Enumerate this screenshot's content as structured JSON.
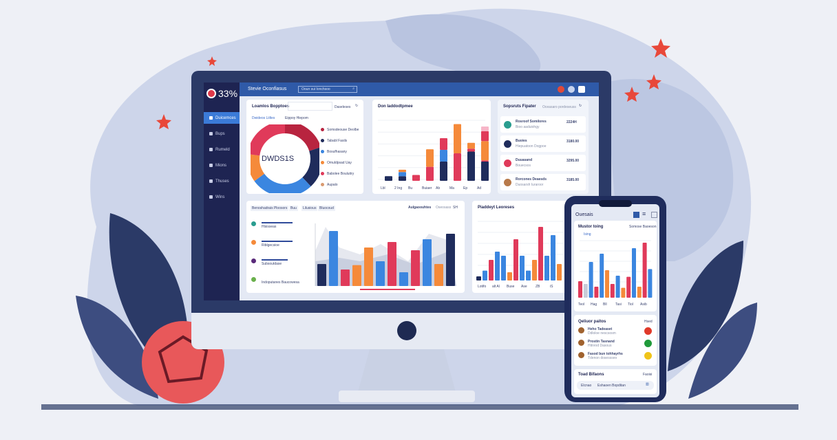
{
  "colors": {
    "navy": "#1f2c5c",
    "blue": "#3b86e0",
    "red": "#e03a5a",
    "orange": "#f58a3a",
    "teal": "#2a9d8f",
    "gray": "#c8ccd8",
    "pink": "#f7b6c8"
  },
  "app": {
    "logo": "33%",
    "title": "Stevie Oconfiasus",
    "search_placeholder": "Ooun sui Ionchsoo"
  },
  "sidebar": {
    "items": [
      {
        "label": "Duicemces",
        "active": true
      },
      {
        "label": "Bups"
      },
      {
        "label": "Rumeld"
      },
      {
        "label": "Mions"
      },
      {
        "label": "Thuses"
      },
      {
        "label": "Wins"
      }
    ]
  },
  "donut_card": {
    "title": "Loamlos Bopptoes",
    "tab": "Daseleses",
    "legend_a": "Dwideos Liiltes",
    "legend_b": "Eippoy Hiepom",
    "center": "DWDS1S",
    "slices": [
      {
        "label": "Somsdeouse Deolbe",
        "value": 20,
        "color": "#b8243f"
      },
      {
        "label": "Tababl Fasils",
        "value": 18,
        "color": "#1f2c5c"
      },
      {
        "label": "Bosufhasany",
        "value": 27,
        "color": "#3b86e0"
      },
      {
        "label": "Omuldpsad Uay",
        "value": 12,
        "color": "#f58a3a"
      },
      {
        "label": "Babolee Bouluitry",
        "value": 23,
        "color": "#e03a5a"
      },
      {
        "label": "Aupalo",
        "value": 0,
        "color": "#d99a70"
      }
    ]
  },
  "bar_card": {
    "title": "Don Iaddodtpmee",
    "labels": [
      "Lbl",
      "2 Ing",
      "Bu",
      "Buiaer",
      "Ab",
      "Ma",
      "Ep",
      "Ad"
    ],
    "bars": [
      [
        [
          "navy",
          8
        ]
      ],
      [
        [
          "navy",
          8
        ],
        [
          "blue",
          7
        ],
        [
          "orange",
          4
        ]
      ],
      [
        [
          "red",
          10
        ]
      ],
      [
        [
          "red",
          24
        ],
        [
          "orange",
          30
        ]
      ],
      [
        [
          "navy",
          33
        ],
        [
          "blue",
          20
        ],
        [
          "red",
          20
        ]
      ],
      [
        [
          "red",
          47
        ],
        [
          "orange",
          50
        ]
      ],
      [
        [
          "navy",
          50
        ],
        [
          "red",
          5
        ],
        [
          "orange",
          10
        ]
      ],
      [
        [
          "navy",
          33
        ],
        [
          "red",
          2
        ],
        [
          "orange",
          33
        ],
        [
          "red",
          17
        ],
        [
          "pink",
          8
        ]
      ]
    ]
  },
  "list_card": {
    "title": "Sopsruts Fipater",
    "tab": "Oceasaro pordeseuss",
    "items": [
      {
        "name": "Rosroof Somilores",
        "sub": "Bioo aaduiohgy",
        "value": "2224H",
        "color": "#2a9d8f"
      },
      {
        "name": "Buoies",
        "sub": "Hiepuatoon Dogpoe",
        "value": "3180.00",
        "color": "#1f2c5c"
      },
      {
        "name": "Duuasand",
        "sub": "Bouecsos",
        "value": "3295.00",
        "color": "#e03a5a"
      },
      {
        "name": "Rorcones Deaesds",
        "sub": "Duosarsh Iuraroor",
        "value": "3185.00",
        "color": "#b87a4a"
      }
    ]
  },
  "wide_card": {
    "tabs": [
      "Benoshadrais Ploosors",
      "Buu",
      "Lilusious",
      "Bluocoud"
    ],
    "right_label": "Aulgaoouhtes",
    "right_tab": "Oseosass",
    "right_value": "SH",
    "rows": [
      {
        "label": "Hlsisseas",
        "progress": 1.0,
        "color": "#2a9d8f"
      },
      {
        "label": "Riblgecsioe",
        "progress": 1.0,
        "color": "#f58a3a"
      },
      {
        "label": "Subsoutdase",
        "progress": 0.85,
        "color": "#5a2a7a"
      },
      {
        "label": "Indoputanes Baucowesa",
        "progress": 0,
        "color": "#6ab04c"
      }
    ],
    "bars": [
      [
        "navy",
        40
      ],
      [
        "blue",
        100
      ],
      [
        "red",
        30
      ],
      [
        "orange",
        38
      ],
      [
        "orange",
        70
      ],
      [
        "blue",
        45
      ],
      [
        "red",
        80
      ],
      [
        "blue",
        25
      ],
      [
        "red",
        65
      ],
      [
        "blue",
        85
      ],
      [
        "orange",
        40
      ],
      [
        "navy",
        95
      ]
    ]
  },
  "grouped_card": {
    "title": "Piaddeyt Leoreses",
    "labels": [
      "Lotifo",
      "alt Al",
      "Buse",
      "Ase",
      "ZB",
      "iS"
    ],
    "bars": [
      [
        "navy",
        5
      ],
      [
        "blue",
        12
      ],
      [
        "red",
        25
      ],
      [
        "blue",
        35
      ],
      [
        "blue",
        30
      ],
      [
        "orange",
        10
      ],
      [
        "red",
        50
      ],
      [
        "blue",
        30
      ],
      [
        "blue",
        12
      ],
      [
        "orange",
        25
      ],
      [
        "red",
        65
      ],
      [
        "blue",
        30
      ],
      [
        "blue",
        55
      ],
      [
        "orange",
        20
      ]
    ]
  },
  "phone": {
    "brand": "Ouesais",
    "chart_title": "Mustor toing",
    "dropdown": "Somose Baoeson",
    "legend": "Ising",
    "labels": [
      "Teol",
      "Hag",
      "Bll",
      "Tasi",
      "Tiol",
      "Asib"
    ],
    "bars": [
      [
        "red",
        30
      ],
      [
        "gray",
        25
      ],
      [
        "blue",
        65
      ],
      [
        "red",
        20
      ],
      [
        "blue",
        80
      ],
      [
        "orange",
        50
      ],
      [
        "red",
        25
      ],
      [
        "blue",
        40
      ],
      [
        "orange",
        18
      ],
      [
        "red",
        38
      ],
      [
        "blue",
        90
      ],
      [
        "orange",
        20
      ],
      [
        "red",
        100
      ],
      [
        "blue",
        52
      ]
    ],
    "orders_title": "Qeliuor paitos",
    "orders_more": "Hsed",
    "orders": [
      {
        "name": "Heho Tadeaset",
        "sub": "Ddloloe nescsosm",
        "color": "#e03a2a"
      },
      {
        "name": "Prostin Tasnand",
        "sub": "Hitnrod Dasous",
        "color": "#1f9a3a"
      },
      {
        "name": "Fasod bun tohhayrhs",
        "sub": "Tdenon dosessseo",
        "color": "#f0c419"
      }
    ],
    "footer_title": "Toad Bifaons",
    "footer_more": "Faoisi",
    "footer_a": "Elcnao",
    "footer_b": "Eshaoen Bopditan"
  }
}
